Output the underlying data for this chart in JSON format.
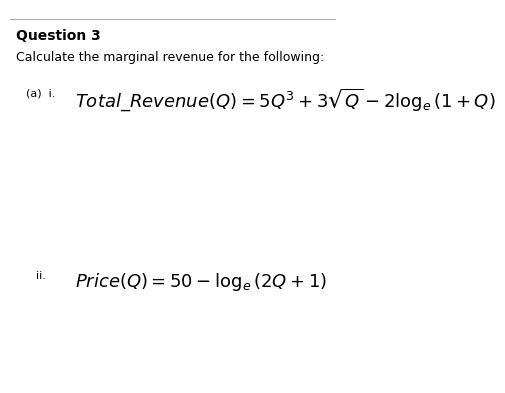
{
  "title": "Question 3",
  "subtitle": "Calculate the marginal revenue for the following:",
  "label_a": "(a)  i.",
  "label_ii": "ii.",
  "formula1": "$\\mathit{Total\\_Revenue}(Q) = 5Q^3 + 3\\sqrt{Q} - 2\\log_e(1 + Q)$",
  "formula2": "$\\mathit{Price}(Q) = 50 - \\log_e(2Q + 1)$",
  "bg_color": "#ffffff",
  "text_color": "#000000",
  "title_fontsize": 10,
  "subtitle_fontsize": 9,
  "label_fontsize": 8,
  "formula_fontsize": 13
}
